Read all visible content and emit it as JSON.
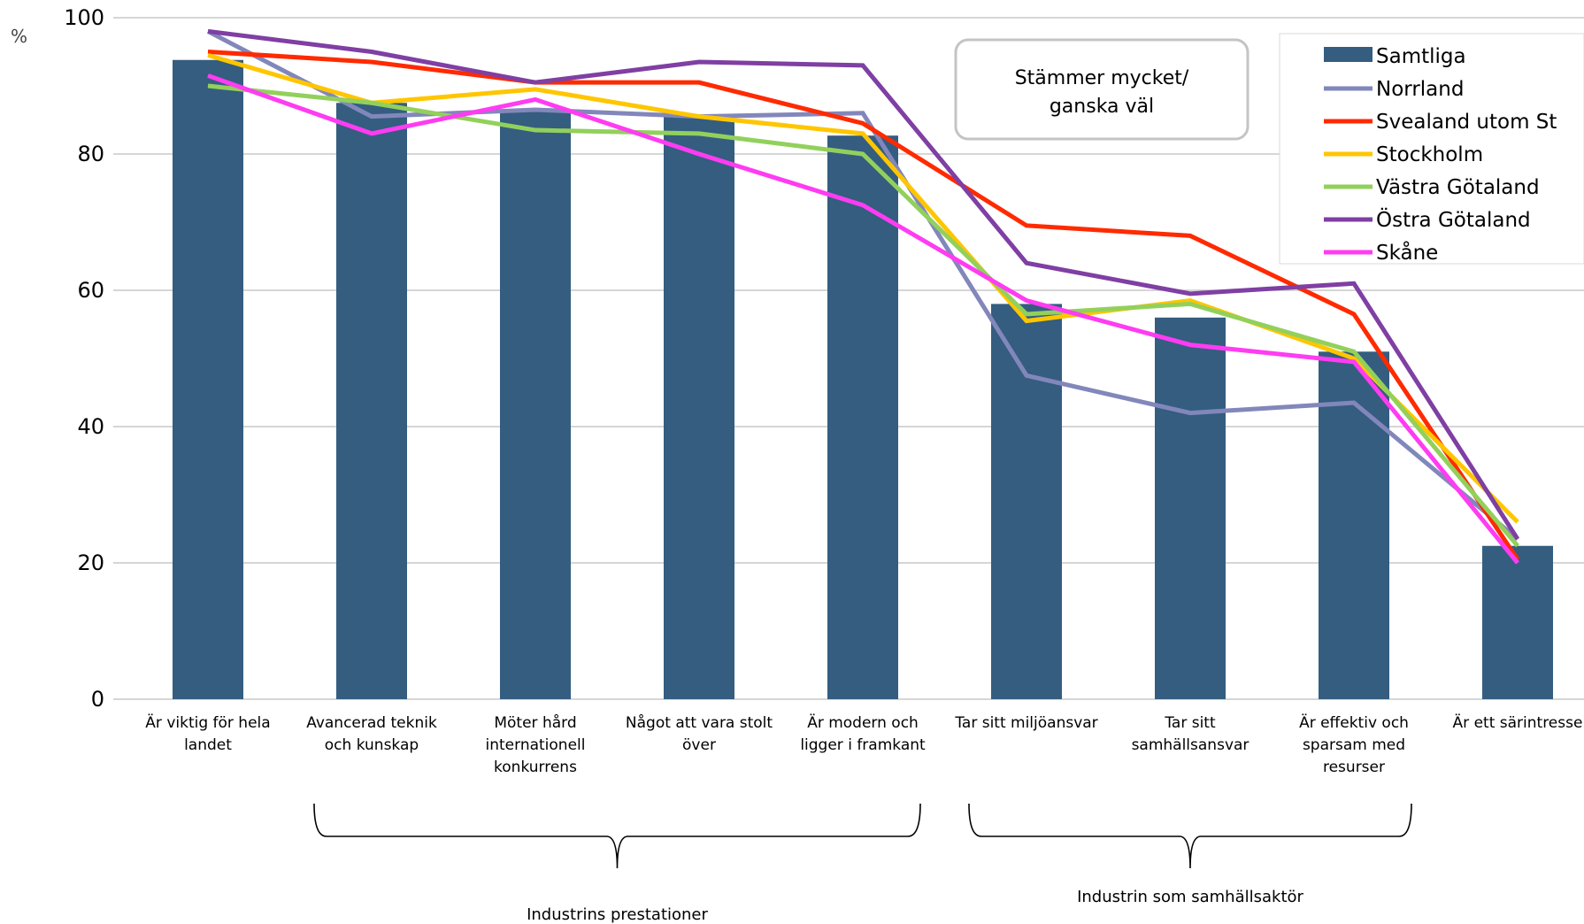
{
  "chart_data": {
    "type": "bar",
    "unit_label": "%",
    "ylim": [
      0,
      100
    ],
    "yticks": [
      0,
      20,
      40,
      60,
      80,
      100
    ],
    "grid": true,
    "legend_position": "top-right",
    "categories": [
      [
        "Är viktig för hela",
        "landet"
      ],
      [
        "Avancerad teknik",
        "och kunskap"
      ],
      [
        "Möter hård",
        "internationell",
        "konkurrens"
      ],
      [
        "Något att vara stolt",
        "över"
      ],
      [
        "Är modern och",
        "ligger i framkant"
      ],
      [
        "Tar sitt miljöansvar"
      ],
      [
        "Tar sitt",
        "samhällsansvar"
      ],
      [
        "Är effektiv och",
        "sparsam med",
        "resurser"
      ],
      [
        "Är ett särintresse"
      ]
    ],
    "bar_series": {
      "name": "Samtliga",
      "color": "#345d80",
      "values": [
        93.8,
        87.5,
        86.5,
        85.5,
        82.7,
        58.0,
        56.0,
        51.0,
        22.5
      ]
    },
    "line_series": [
      {
        "name": "Norrland",
        "color": "#8287bb",
        "values": [
          98.0,
          85.5,
          86.5,
          85.5,
          86.0,
          47.5,
          42.0,
          43.5,
          23.5
        ]
      },
      {
        "name": "Svealand utom St",
        "color": "#ff2a00",
        "values": [
          95.0,
          93.5,
          90.5,
          90.5,
          84.5,
          69.5,
          68.0,
          56.5,
          20.5
        ]
      },
      {
        "name": "Stockholm",
        "color": "#ffc600",
        "values": [
          94.5,
          87.5,
          89.5,
          85.5,
          83.0,
          55.5,
          58.5,
          50.0,
          26.0
        ]
      },
      {
        "name": "Västra Götaland",
        "color": "#92d05c",
        "values": [
          90.0,
          87.5,
          83.5,
          83.0,
          80.0,
          56.5,
          58.0,
          51.0,
          22.5
        ]
      },
      {
        "name": "Östra Götaland",
        "color": "#7f3fa3",
        "values": [
          98.0,
          95.0,
          90.5,
          93.5,
          93.0,
          64.0,
          59.5,
          61.0,
          23.5
        ]
      },
      {
        "name": "Skåne",
        "color": "#ff3cf2",
        "values": [
          91.5,
          83.0,
          88.0,
          80.0,
          72.5,
          58.5,
          52.0,
          49.5,
          20.0
        ]
      }
    ],
    "annotation": [
      "Stämmer mycket/",
      "ganska väl"
    ],
    "groups": [
      {
        "label": "Industrins prestationer",
        "from": 1,
        "to": 4
      },
      {
        "label": "Industrin som samhällsaktör",
        "from": 5,
        "to": 7
      }
    ]
  }
}
